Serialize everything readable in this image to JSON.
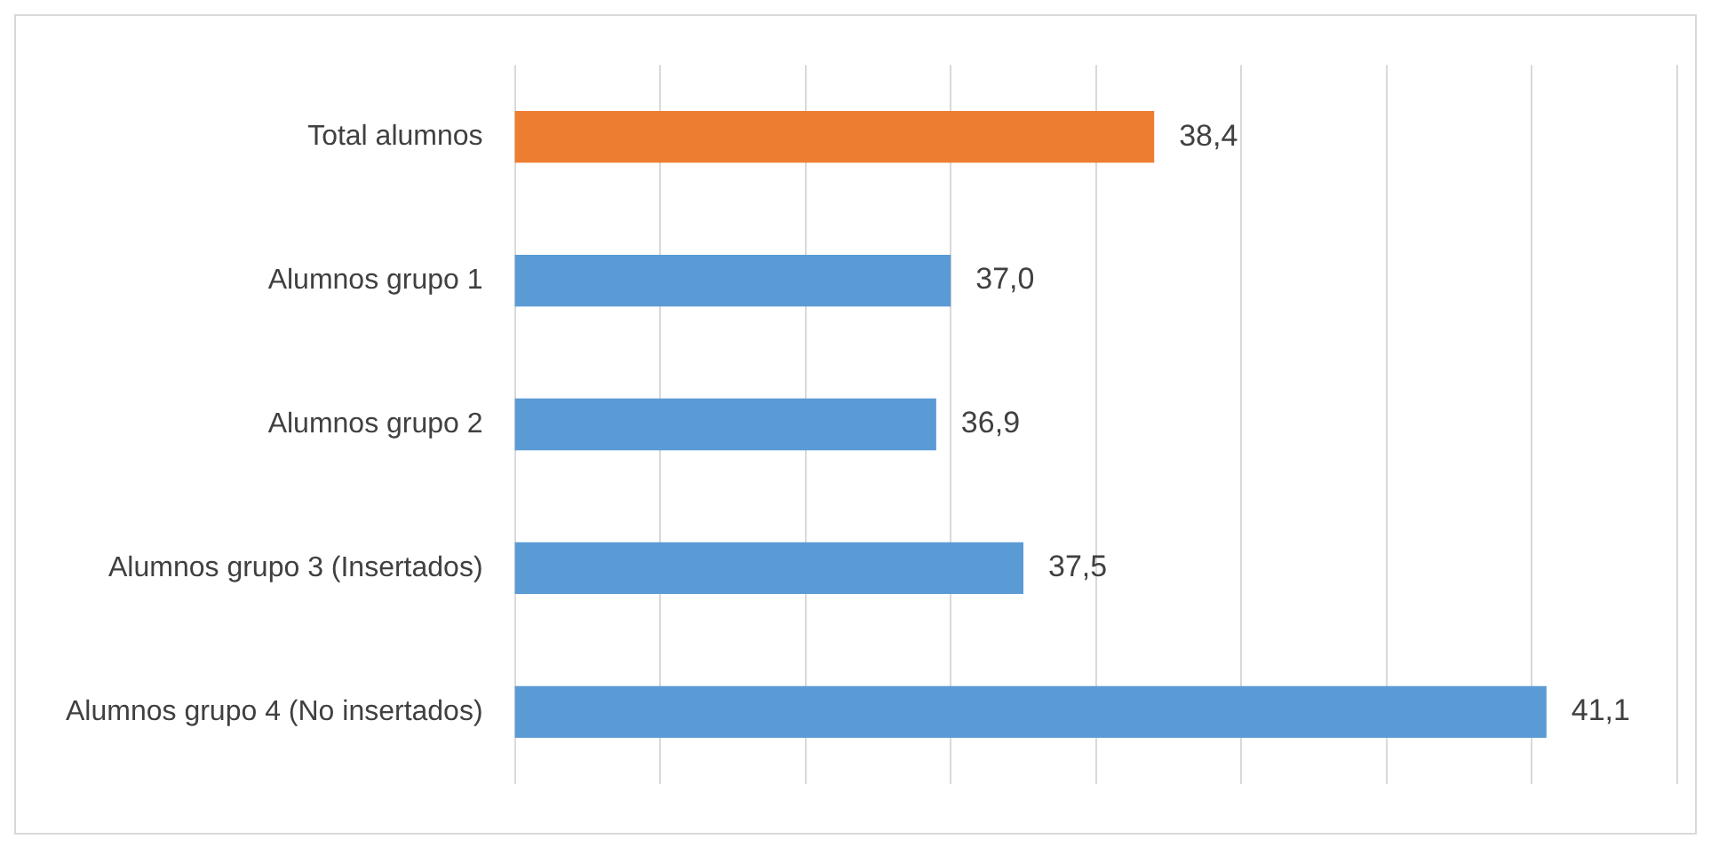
{
  "chart_data": {
    "type": "bar",
    "orientation": "horizontal",
    "categories": [
      "Total alumnos",
      "Alumnos grupo 1",
      "Alumnos grupo 2",
      "Alumnos grupo 3 (Insertados)",
      "Alumnos grupo 4 (No insertados)"
    ],
    "values": [
      38.4,
      37.0,
      36.9,
      37.5,
      41.1
    ],
    "colors": [
      "#ed7d31",
      "#5b9bd5",
      "#5b9bd5",
      "#5b9bd5",
      "#5b9bd5"
    ],
    "value_labels": [
      "38,4",
      "37,0",
      "36,9",
      "37,5",
      "41,1"
    ],
    "xlim": [
      34,
      42
    ],
    "xticks": [
      {
        "value": 34,
        "label": null
      },
      {
        "value": 35,
        "label": null
      },
      {
        "value": 36,
        "label": null
      },
      {
        "value": 37,
        "label": null
      },
      {
        "value": 38,
        "label": null
      },
      {
        "value": 39,
        "label": null
      },
      {
        "value": 40,
        "label": null
      },
      {
        "value": 41,
        "label": null
      },
      {
        "value": 42,
        "label": null
      }
    ],
    "grid": "x",
    "tick_labels": "y",
    "legend": false
  }
}
